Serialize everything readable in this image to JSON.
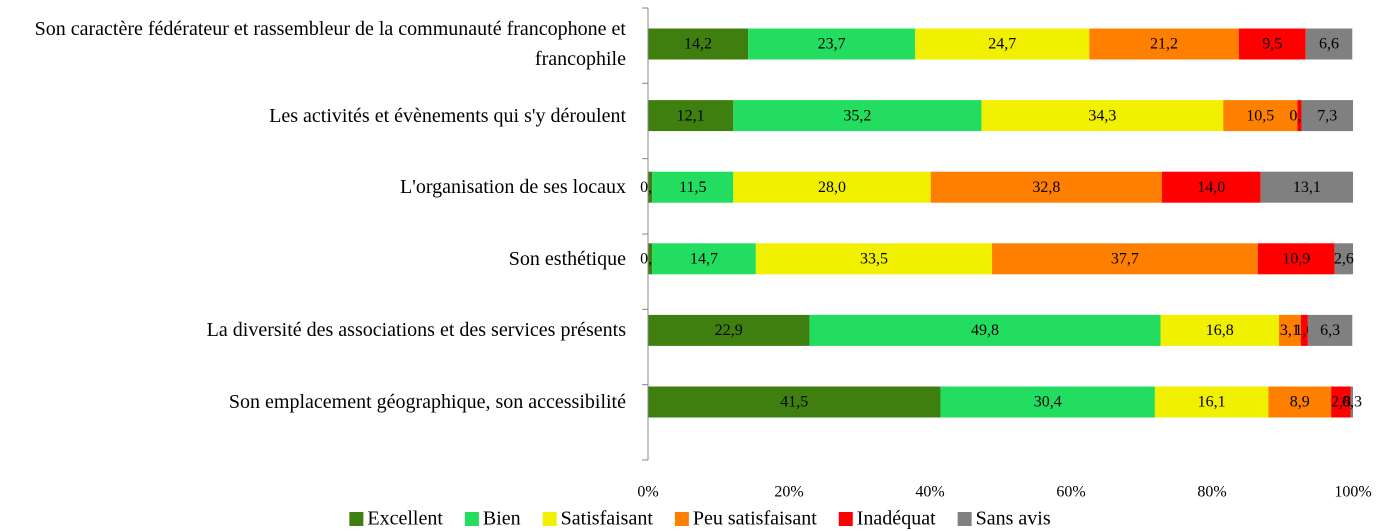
{
  "chart_data": {
    "type": "stacked_bar_horizontal",
    "categories": [
      "Son caractère fédérateur et rassembleur de la communauté francophone et francophile",
      "Les activités et évènements qui s'y déroulent",
      "L'organisation de ses locaux",
      "Son esthétique",
      "La diversité des associations et des services présents",
      "Son emplacement géographique, son accessibilité"
    ],
    "series": [
      {
        "name": "Excellent",
        "color": "#3f7f0f",
        "values": [
          14.2,
          12.1,
          0.6,
          0.6,
          22.9,
          41.5
        ],
        "value_labels": [
          "14,2",
          "12,1",
          "0,6",
          "0,6",
          "22,9",
          "41,5"
        ]
      },
      {
        "name": "Bien",
        "color": "#22dd5f",
        "values": [
          23.7,
          35.2,
          11.5,
          14.7,
          49.8,
          30.4
        ],
        "value_labels": [
          "23,7",
          "35,2",
          "11,5",
          "14,7",
          "49,8",
          "30,4"
        ]
      },
      {
        "name": "Satisfaisant",
        "color": "#f0f000",
        "values": [
          24.7,
          34.3,
          28.0,
          33.5,
          16.8,
          16.1
        ],
        "value_labels": [
          "24,7",
          "34,3",
          "28,0",
          "33,5",
          "16,8",
          "16,1"
        ]
      },
      {
        "name": "Peu satisfaisant",
        "color": "#ff8000",
        "values": [
          21.2,
          10.5,
          32.8,
          37.7,
          3.1,
          8.9
        ],
        "value_labels": [
          "21,2",
          "10,5",
          "32,8",
          "37,7",
          "3,1",
          "8,9"
        ]
      },
      {
        "name": "Inadéquat",
        "color": "#ff0000",
        "values": [
          9.5,
          0.6,
          14.0,
          10.9,
          1.0,
          2.8
        ],
        "value_labels": [
          "9,5",
          "0,6",
          "14,0",
          "10,9",
          "1,0",
          "2,8"
        ]
      },
      {
        "name": "Sans avis",
        "color": "#808080",
        "values": [
          6.6,
          7.3,
          13.1,
          2.6,
          6.3,
          0.3
        ],
        "value_labels": [
          "6,6",
          "7,3",
          "13,1",
          "2,6",
          "6,3",
          "0,3"
        ]
      }
    ],
    "xlim": [
      0,
      100
    ],
    "xticks": [
      {
        "value": 0,
        "label": "0%"
      },
      {
        "value": 20,
        "label": "20%"
      },
      {
        "value": 40,
        "label": "40%"
      },
      {
        "value": 60,
        "label": "60%"
      },
      {
        "value": 80,
        "label": "80%"
      },
      {
        "value": 100,
        "label": "100%"
      }
    ],
    "grid": false,
    "legend": "bottom"
  }
}
